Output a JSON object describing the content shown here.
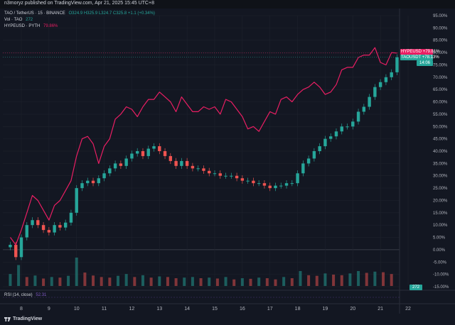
{
  "header": {
    "published": "n3moryz published on TradingView.com, Apr 21, 2025 15:45 UTC+8"
  },
  "legend": {
    "symbol": "TAO / TetherUS · 15 · BINANCE",
    "ohlc": "O324.9 H325.9 L324.7 C325.8 +1.1 (+0.34%)",
    "volume_label": "Vol · TAO",
    "volume_value": "272",
    "compare_label": "HYPEUSD · PYTH",
    "compare_value": "79.86%"
  },
  "badges": {
    "hype_label": "HYPEUSD",
    "hype_value": "+79.81%",
    "tao_label": "TAOUSDT",
    "tao_value": "+78.13%",
    "countdown": "14:06",
    "volume": "272"
  },
  "rsi": {
    "label": "RSI (14, close)",
    "value": "52.31"
  },
  "footer": {
    "brand": "TradingView"
  },
  "colors": {
    "background": "#131722",
    "tao_up": "#26a69a",
    "tao_down": "#ef5350",
    "hype": "#e91e63",
    "rsi": "#7e57c2",
    "axis_text": "#b2b5be"
  },
  "chart_data": {
    "type": "line",
    "x_tick_labels": [
      "8",
      "9",
      "10",
      "11",
      "12",
      "13",
      "14",
      "15",
      "16",
      "17",
      "18",
      "19",
      "20",
      "21",
      "22"
    ],
    "y_tick_labels": [
      "95.00%",
      "90.00%",
      "85.00%",
      "80.00%",
      "75.00%",
      "70.00%",
      "65.00%",
      "60.00%",
      "55.00%",
      "50.00%",
      "45.00%",
      "40.00%",
      "35.00%",
      "30.00%",
      "25.00%",
      "20.00%",
      "15.00%",
      "10.00%",
      "5.00%",
      "0.00%",
      "-5.00%",
      "-10.00%",
      "-15.00%"
    ],
    "ylim": [
      -15,
      95
    ],
    "xlim": [
      7.5,
      22.5
    ],
    "y_scale": "percent",
    "series": [
      {
        "name": "HYPEUSD",
        "style": "line",
        "x": [
          7.6,
          7.8,
          8.0,
          8.2,
          8.4,
          8.6,
          8.8,
          9.0,
          9.2,
          9.4,
          9.6,
          9.8,
          10.0,
          10.2,
          10.4,
          10.6,
          10.8,
          11.0,
          11.2,
          11.4,
          11.6,
          11.8,
          12.0,
          12.2,
          12.4,
          12.6,
          12.8,
          13.0,
          13.2,
          13.4,
          13.6,
          13.8,
          14.0,
          14.2,
          14.4,
          14.6,
          14.8,
          15.0,
          15.2,
          15.4,
          15.6,
          15.8,
          16.0,
          16.2,
          16.4,
          16.6,
          16.8,
          17.0,
          17.2,
          17.4,
          17.6,
          17.8,
          18.0,
          18.2,
          18.4,
          18.6,
          18.8,
          19.0,
          19.2,
          19.4,
          19.6,
          19.8,
          20.0,
          20.2,
          20.4,
          20.6,
          20.8,
          21.0,
          21.2,
          21.4,
          21.6
        ],
        "values": [
          5,
          2,
          8,
          15,
          22,
          20,
          16,
          12,
          18,
          20,
          24,
          28,
          38,
          45,
          46,
          43,
          35,
          42,
          45,
          53,
          55,
          58,
          57,
          54,
          58,
          61,
          61,
          64,
          62,
          60,
          56,
          62,
          59,
          56,
          56,
          58,
          57,
          58,
          55,
          61,
          60,
          57,
          54,
          49,
          50,
          48,
          52,
          56,
          55,
          61,
          62,
          60,
          63,
          65,
          66,
          68,
          66,
          63,
          64,
          67,
          73,
          74,
          74,
          78,
          79,
          79,
          82,
          76,
          75,
          80,
          79.8
        ]
      },
      {
        "name": "TAOUSDT",
        "style": "candles",
        "x": [
          7.6,
          7.8,
          8.0,
          8.2,
          8.4,
          8.6,
          8.8,
          9.0,
          9.2,
          9.4,
          9.6,
          9.8,
          10.0,
          10.2,
          10.4,
          10.6,
          10.8,
          11.0,
          11.2,
          11.4,
          11.6,
          11.8,
          12.0,
          12.2,
          12.4,
          12.6,
          12.8,
          13.0,
          13.2,
          13.4,
          13.6,
          13.8,
          14.0,
          14.2,
          14.4,
          14.6,
          14.8,
          15.0,
          15.2,
          15.4,
          15.6,
          15.8,
          16.0,
          16.2,
          16.4,
          16.6,
          16.8,
          17.0,
          17.2,
          17.4,
          17.6,
          17.8,
          18.0,
          18.2,
          18.4,
          18.6,
          18.8,
          19.0,
          19.2,
          19.4,
          19.6,
          19.8,
          20.0,
          20.2,
          20.4,
          20.6,
          20.8,
          21.0,
          21.2,
          21.4,
          21.6
        ],
        "values": [
          2,
          -3,
          5,
          10,
          12,
          10,
          8,
          7,
          10,
          9,
          11,
          15,
          25,
          27,
          28,
          27,
          29,
          31,
          33,
          35,
          34,
          37,
          39,
          40,
          38,
          41,
          42,
          40,
          38,
          36,
          34,
          36,
          34,
          33,
          33,
          32,
          31,
          31,
          30,
          30,
          30,
          29,
          28,
          28,
          27,
          27,
          26,
          25,
          26,
          26,
          27,
          27,
          31,
          35,
          37,
          40,
          42,
          45,
          46,
          48,
          50,
          50,
          52,
          56,
          58,
          62,
          66,
          68,
          70,
          72,
          78.1
        ]
      },
      {
        "name": "Vol · TAO",
        "style": "volume",
        "x": [
          7.6,
          7.9,
          8.2,
          8.5,
          8.8,
          9.1,
          9.4,
          9.7,
          10.0,
          10.3,
          10.6,
          10.9,
          11.2,
          11.5,
          11.8,
          12.1,
          12.4,
          12.7,
          13.0,
          13.3,
          13.6,
          13.9,
          14.2,
          14.5,
          14.8,
          15.1,
          15.4,
          15.7,
          16.0,
          16.3,
          16.6,
          16.9,
          17.2,
          17.5,
          17.8,
          18.1,
          18.4,
          18.7,
          19.0,
          19.3,
          19.6,
          19.9,
          20.2,
          20.5,
          20.8,
          21.1,
          21.4
        ],
        "values": [
          40,
          70,
          30,
          35,
          25,
          30,
          28,
          34,
          95,
          45,
          35,
          30,
          28,
          34,
          40,
          30,
          36,
          28,
          32,
          30,
          26,
          28,
          30,
          26,
          28,
          25,
          30,
          22,
          26,
          24,
          28,
          26,
          22,
          30,
          26,
          50,
          36,
          34,
          42,
          38,
          36,
          42,
          50,
          44,
          48,
          46,
          40
        ]
      }
    ]
  }
}
